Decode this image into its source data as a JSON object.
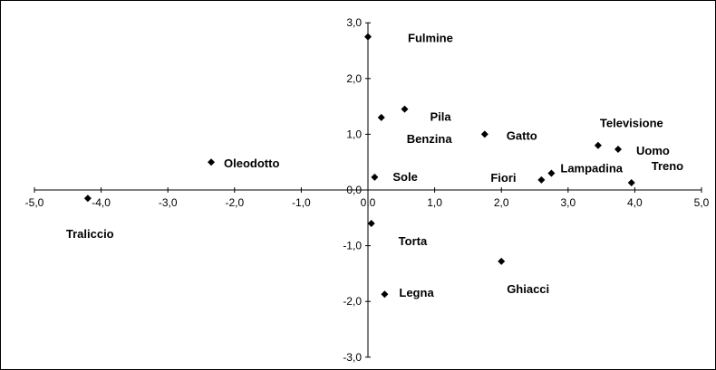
{
  "chart_data": {
    "type": "scatter",
    "title": "",
    "xlabel": "",
    "ylabel": "",
    "xlim": [
      -5,
      5
    ],
    "ylim": [
      -3,
      3
    ],
    "grid": false,
    "marker": "diamond",
    "marker_color": "#000000",
    "x_ticks": [
      {
        "value": -5,
        "label": "-5,0"
      },
      {
        "value": -4,
        "label": "-4,0"
      },
      {
        "value": -3,
        "label": "-3,0"
      },
      {
        "value": -2,
        "label": "-2,0"
      },
      {
        "value": -1,
        "label": "-1,0"
      },
      {
        "value": 0,
        "label": "0,0"
      },
      {
        "value": 1,
        "label": "1,0"
      },
      {
        "value": 2,
        "label": "2,0"
      },
      {
        "value": 3,
        "label": "3,0"
      },
      {
        "value": 4,
        "label": "4,0"
      },
      {
        "value": 5,
        "label": "5,0"
      }
    ],
    "y_ticks": [
      {
        "value": 3,
        "label": "3,0"
      },
      {
        "value": 2,
        "label": "2,0"
      },
      {
        "value": 1,
        "label": "1,0"
      },
      {
        "value": 0,
        "label": "0,0"
      },
      {
        "value": -1,
        "label": "-1,0"
      },
      {
        "value": -2,
        "label": "-2,0"
      },
      {
        "value": -3,
        "label": "-3,0"
      }
    ],
    "points": [
      {
        "label": "Fulmine",
        "x": 0.0,
        "y": 2.75
      },
      {
        "label": "Pila",
        "x": 0.55,
        "y": 1.45
      },
      {
        "label": "Benzina",
        "x": 0.2,
        "y": 1.3
      },
      {
        "label": "Gatto",
        "x": 1.75,
        "y": 1.0
      },
      {
        "label": "Televisione",
        "x": 3.45,
        "y": 0.8
      },
      {
        "label": "Uomo",
        "x": 3.75,
        "y": 0.73
      },
      {
        "label": "Oleodotto",
        "x": -2.35,
        "y": 0.5
      },
      {
        "label": "Sole",
        "x": 0.1,
        "y": 0.23
      },
      {
        "label": "Lampadina",
        "x": 2.75,
        "y": 0.3
      },
      {
        "label": "Fiori",
        "x": 2.6,
        "y": 0.18
      },
      {
        "label": "Treno",
        "x": 3.95,
        "y": 0.13
      },
      {
        "label": "Traliccio",
        "x": -4.2,
        "y": -0.15
      },
      {
        "label": "Torta",
        "x": 0.05,
        "y": -0.6
      },
      {
        "label": "Ghiacci",
        "x": 2.0,
        "y": -1.28
      },
      {
        "label": "Legna",
        "x": 0.25,
        "y": -1.87
      }
    ]
  }
}
